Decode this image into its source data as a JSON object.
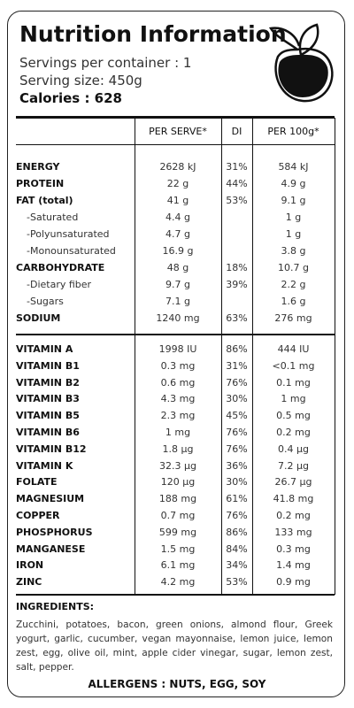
{
  "header": {
    "title": "Nutrition Information",
    "servings": "Servings per container : 1",
    "serving_size": "Serving size: 450g",
    "calories": "Calories : 628"
  },
  "table": {
    "columns": [
      "PER SERVE*",
      "DI",
      "PER  100g*"
    ],
    "sections": [
      [
        [
          "ENERGY",
          "2628 kJ",
          "31%",
          "584 kJ"
        ],
        [
          "PROTEIN",
          "22 g",
          "44%",
          "4.9 g"
        ],
        [
          "FAT (total)",
          "41 g",
          "53%",
          "9.1 g"
        ],
        [
          "-Saturated",
          "4.4 g",
          null,
          "1 g"
        ],
        [
          "-Polyunsaturated",
          "4.7 g",
          null,
          "1 g"
        ],
        [
          "-Monounsaturated",
          "16.9 g",
          null,
          "3.8 g"
        ],
        [
          "CARBOHYDRATE",
          "48 g",
          "18%",
          "10.7 g"
        ],
        [
          "-Dietary fiber",
          "9.7 g",
          "39%",
          "2.2 g"
        ],
        [
          "-Sugars",
          "7.1 g",
          null,
          "1.6 g"
        ],
        [
          "SODIUM",
          "1240 mg",
          "63%",
          "276 mg"
        ]
      ],
      [
        [
          "VITAMIN A",
          "1998 IU",
          "86%",
          "444 IU"
        ],
        [
          "VITAMIN B1",
          "0.3 mg",
          "31%",
          "<0.1 mg"
        ],
        [
          "VITAMIN B2",
          "0.6 mg",
          "76%",
          "0.1 mg"
        ],
        [
          "VITAMIN B3",
          "4.3 mg",
          "30%",
          "1 mg"
        ],
        [
          "VITAMIN B5",
          "2.3 mg",
          "45%",
          "0.5 mg"
        ],
        [
          "VITAMIN B6",
          "1 mg",
          "76%",
          "0.2 mg"
        ],
        [
          "VITAMIN B12",
          "1.8 µg",
          "76%",
          "0.4 µg"
        ],
        [
          "VITAMIN K",
          "32.3 µg",
          "36%",
          "7.2 µg"
        ],
        [
          "FOLATE",
          "120 µg",
          "30%",
          "26.7 µg"
        ],
        [
          "MAGNESIUM",
          "188 mg",
          "61%",
          "41.8 mg"
        ],
        [
          "COPPER",
          "0.7 mg",
          "76%",
          "0.2 mg"
        ],
        [
          "PHOSPHORUS",
          "599 mg",
          "86%",
          "133 mg"
        ],
        [
          "MANGANESE",
          "1.5 mg",
          "84%",
          "0.3 mg"
        ],
        [
          "IRON",
          "6.1 mg",
          "34%",
          "1.4 mg"
        ],
        [
          "ZINC",
          "4.2 mg",
          "53%",
          "0.9 mg"
        ]
      ]
    ]
  },
  "ingredients": {
    "heading": "INGREDIENTS:",
    "text": "Zucchini, potatoes, bacon, green onions, almond flour, Greek yogurt, garlic, cucumber, vegan mayonnaise, lemon juice, lemon zest, egg, olive oil, mint, apple cider vinegar, sugar, lemon zest, salt, pepper.",
    "allergens": "ALLERGENS : NUTS, EGG, SOY"
  }
}
